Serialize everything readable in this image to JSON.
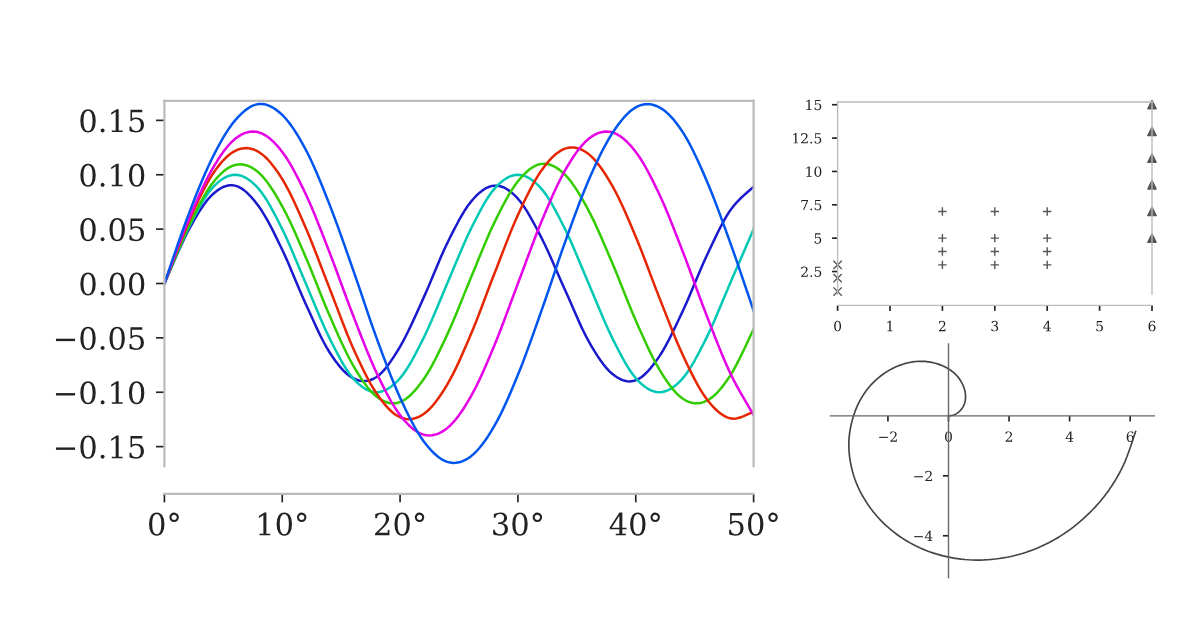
{
  "chart_data": [
    {
      "type": "line",
      "x": [
        0,
        2,
        4,
        6,
        8,
        10,
        12,
        14,
        16,
        18,
        20,
        22,
        24,
        26,
        28,
        30,
        32,
        34,
        36,
        38,
        40,
        42,
        44,
        46,
        48,
        50
      ],
      "xlim": [
        0,
        50
      ],
      "ylim": [
        -0.168,
        0.168
      ],
      "xticks": [
        {
          "value": 0,
          "label": "0°"
        },
        {
          "value": 10,
          "label": "10°"
        },
        {
          "value": 20,
          "label": "20°"
        },
        {
          "value": 30,
          "label": "30°"
        },
        {
          "value": 40,
          "label": "40°"
        },
        {
          "value": 50,
          "label": "50°"
        }
      ],
      "yticks": [
        {
          "value": -0.15,
          "label": "−0.15"
        },
        {
          "value": -0.1,
          "label": "−0.10"
        },
        {
          "value": -0.05,
          "label": "−0.05"
        },
        {
          "value": 0,
          "label": "0.00"
        },
        {
          "value": 0.05,
          "label": "0.05"
        },
        {
          "value": 0.1,
          "label": "0.10"
        },
        {
          "value": 0.15,
          "label": "0.15"
        }
      ],
      "grid": false,
      "legend": false,
      "series": [
        {
          "color": "#1a1acc",
          "values": [
            0,
            0.048,
            0.081,
            0.09,
            0.071,
            0.031,
            -0.019,
            -0.063,
            -0.087,
            -0.086,
            -0.058,
            -0.013,
            0.037,
            0.075,
            0.09,
            0.078,
            0.042,
            -0.006,
            -0.053,
            -0.083,
            -0.089,
            -0.067,
            -0.025,
            0.025,
            0.067,
            0.089
          ]
        },
        {
          "color": "#00c8b4",
          "values": [
            0,
            0.05,
            0.087,
            0.1,
            0.087,
            0.05,
            0,
            -0.05,
            -0.087,
            -0.1,
            -0.087,
            -0.05,
            0,
            0.05,
            0.087,
            0.1,
            0.087,
            0.05,
            0,
            -0.05,
            -0.087,
            -0.1,
            -0.087,
            -0.05,
            0,
            0.05
          ]
        },
        {
          "color": "#33cc00",
          "values": [
            0,
            0.051,
            0.091,
            0.109,
            0.102,
            0.071,
            0.024,
            -0.029,
            -0.075,
            -0.104,
            -0.109,
            -0.088,
            -0.047,
            0.005,
            0.056,
            0.094,
            0.11,
            0.1,
            0.067,
            0.019,
            -0.034,
            -0.079,
            -0.106,
            -0.108,
            -0.085,
            -0.042
          ]
        },
        {
          "color": "#e62600",
          "values": [
            0,
            0.055,
            0.099,
            0.122,
            0.121,
            0.096,
            0.051,
            -0.004,
            -0.059,
            -0.101,
            -0.123,
            -0.12,
            -0.093,
            -0.047,
            0.009,
            0.063,
            0.104,
            0.124,
            0.119,
            0.09,
            0.043,
            -0.013,
            -0.066,
            -0.106,
            -0.124,
            -0.118
          ]
        },
        {
          "color": "#e600e6",
          "values": [
            0,
            0.057,
            0.104,
            0.133,
            0.139,
            0.121,
            0.082,
            0.029,
            -0.029,
            -0.082,
            -0.121,
            -0.139,
            -0.133,
            -0.104,
            -0.057,
            0,
            0.057,
            0.104,
            0.133,
            0.139,
            0.121,
            0.082,
            0.029,
            -0.029,
            -0.082,
            -0.121
          ]
        },
        {
          "color": "#0055ee",
          "values": [
            0,
            0.062,
            0.114,
            0.15,
            0.165,
            0.155,
            0.123,
            0.073,
            0.013,
            -0.05,
            -0.105,
            -0.145,
            -0.164,
            -0.159,
            -0.131,
            -0.084,
            -0.025,
            0.038,
            0.095,
            0.138,
            0.162,
            0.162,
            0.139,
            0.095,
            0.038,
            -0.025
          ]
        }
      ]
    },
    {
      "type": "scatter",
      "xlim": [
        0,
        6
      ],
      "ylim": [
        0.8,
        15.2
      ],
      "xticks": [
        0,
        1,
        2,
        3,
        4,
        5,
        6
      ],
      "yticks": [
        2.5,
        5,
        7.5,
        10,
        12.5,
        15
      ],
      "grid": false,
      "legend": false,
      "series": [
        {
          "color": "#555555",
          "marker": "cross",
          "x": [
            0,
            0,
            0
          ],
          "values": [
            1,
            2,
            3
          ]
        },
        {
          "color": "#555555",
          "marker": "plus",
          "x": [
            2,
            2,
            2,
            2,
            3,
            3,
            3,
            3,
            4,
            4,
            4,
            4
          ],
          "values": [
            3,
            4,
            5,
            7,
            3,
            4,
            5,
            7,
            3,
            4,
            5,
            7
          ]
        },
        {
          "color": "#555555",
          "marker": "triangle",
          "x": [
            6,
            6,
            6,
            6,
            6,
            6
          ],
          "values": [
            5,
            7,
            9,
            11,
            13,
            15
          ]
        }
      ]
    },
    {
      "type": "line",
      "xlim": [
        -3.9,
        6.8
      ],
      "ylim": [
        -5.4,
        2.4
      ],
      "xticks": [
        {
          "value": -2,
          "label": "−2"
        },
        {
          "value": 0,
          "label": "0"
        },
        {
          "value": 2,
          "label": "2"
        },
        {
          "value": 4,
          "label": "4"
        },
        {
          "value": 6,
          "label": "6"
        }
      ],
      "yticks": [
        {
          "value": -4,
          "label": "−4"
        },
        {
          "value": -2,
          "label": "−2"
        }
      ],
      "grid": false,
      "legend": false,
      "series": [
        {
          "color": "#444444",
          "x": [
            0,
            0.196,
            0.37,
            0.5,
            0.56,
            0.54,
            0.43,
            0.24,
            -0.05,
            -0.41,
            -0.83,
            -1.3,
            -1.77,
            -2.23,
            -2.64,
            -2.97,
            -3.19,
            -3.29,
            -3.23,
            -3.01,
            -2.61,
            -2.06,
            -1.35,
            -0.52,
            0.42,
            1.42,
            2.44,
            3.43,
            4.34,
            5.14,
            5.76,
            6.18
          ],
          "values": [
            0,
            0.04,
            0.16,
            0.34,
            0.57,
            0.84,
            1.12,
            1.38,
            1.6,
            1.75,
            1.82,
            1.78,
            1.62,
            1.34,
            0.94,
            0.42,
            -0.19,
            -0.87,
            -1.59,
            -2.32,
            -3.03,
            -3.66,
            -4.19,
            -4.57,
            -4.78,
            -4.79,
            -4.59,
            -4.17,
            -3.53,
            -2.69,
            -1.68,
            -0.52
          ]
        }
      ]
    }
  ]
}
